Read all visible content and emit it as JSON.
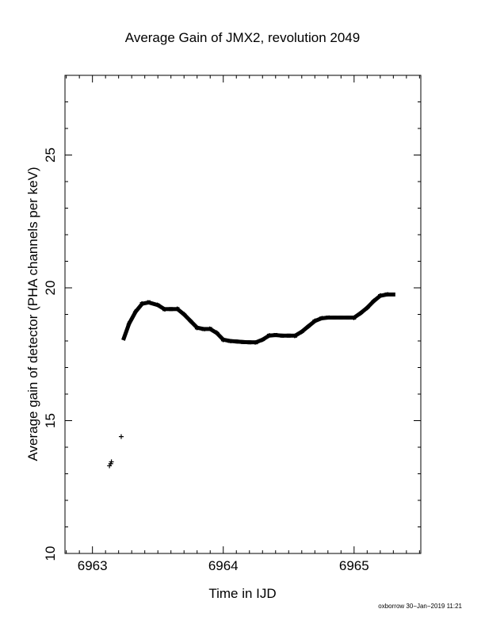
{
  "chart_data": {
    "type": "scatter",
    "title": "Average Gain of JMX2, revolution 2049",
    "xlabel": "Time in IJD",
    "ylabel": "Average gain of detector (PHA channels per keV)",
    "xlim": [
      6962.79,
      6965.51
    ],
    "ylim": [
      10,
      28
    ],
    "xticks": [
      6963,
      6964,
      6965
    ],
    "yticks": [
      10,
      15,
      20,
      25
    ],
    "grid": false,
    "series": [
      {
        "x": [
          6963.13,
          6963.14,
          6963.145,
          6963.22
        ],
        "y": [
          13.3,
          13.38,
          13.45,
          14.4
        ],
        "marker": "plus"
      },
      {
        "x": [
          6963.24,
          6963.28,
          6963.33,
          6963.38,
          6963.43,
          6963.5,
          6963.55,
          6963.6,
          6963.65,
          6963.7,
          6963.75,
          6963.8,
          6963.85,
          6963.9,
          6963.95,
          6964.0,
          6964.05,
          6964.1,
          6964.15,
          6964.2,
          6964.25,
          6964.3,
          6964.35,
          6964.4,
          6964.45,
          6964.5,
          6964.55,
          6964.6,
          6964.65,
          6964.7,
          6964.75,
          6964.8,
          6964.85,
          6964.9,
          6964.95,
          6965.0,
          6965.05,
          6965.1,
          6965.15,
          6965.2,
          6965.25,
          6965.3
        ],
        "y": [
          18.1,
          18.65,
          19.1,
          19.4,
          19.45,
          19.35,
          19.2,
          19.2,
          19.2,
          19.0,
          18.75,
          18.5,
          18.45,
          18.45,
          18.3,
          18.05,
          18.0,
          17.98,
          17.96,
          17.95,
          17.95,
          18.05,
          18.2,
          18.22,
          18.2,
          18.2,
          18.2,
          18.35,
          18.55,
          18.75,
          18.85,
          18.88,
          18.88,
          18.88,
          18.88,
          18.88,
          19.05,
          19.25,
          19.5,
          19.7,
          19.75,
          19.75
        ],
        "marker": "dense"
      }
    ]
  },
  "footer": "oxborrow 30−Jan−2019 11:21"
}
